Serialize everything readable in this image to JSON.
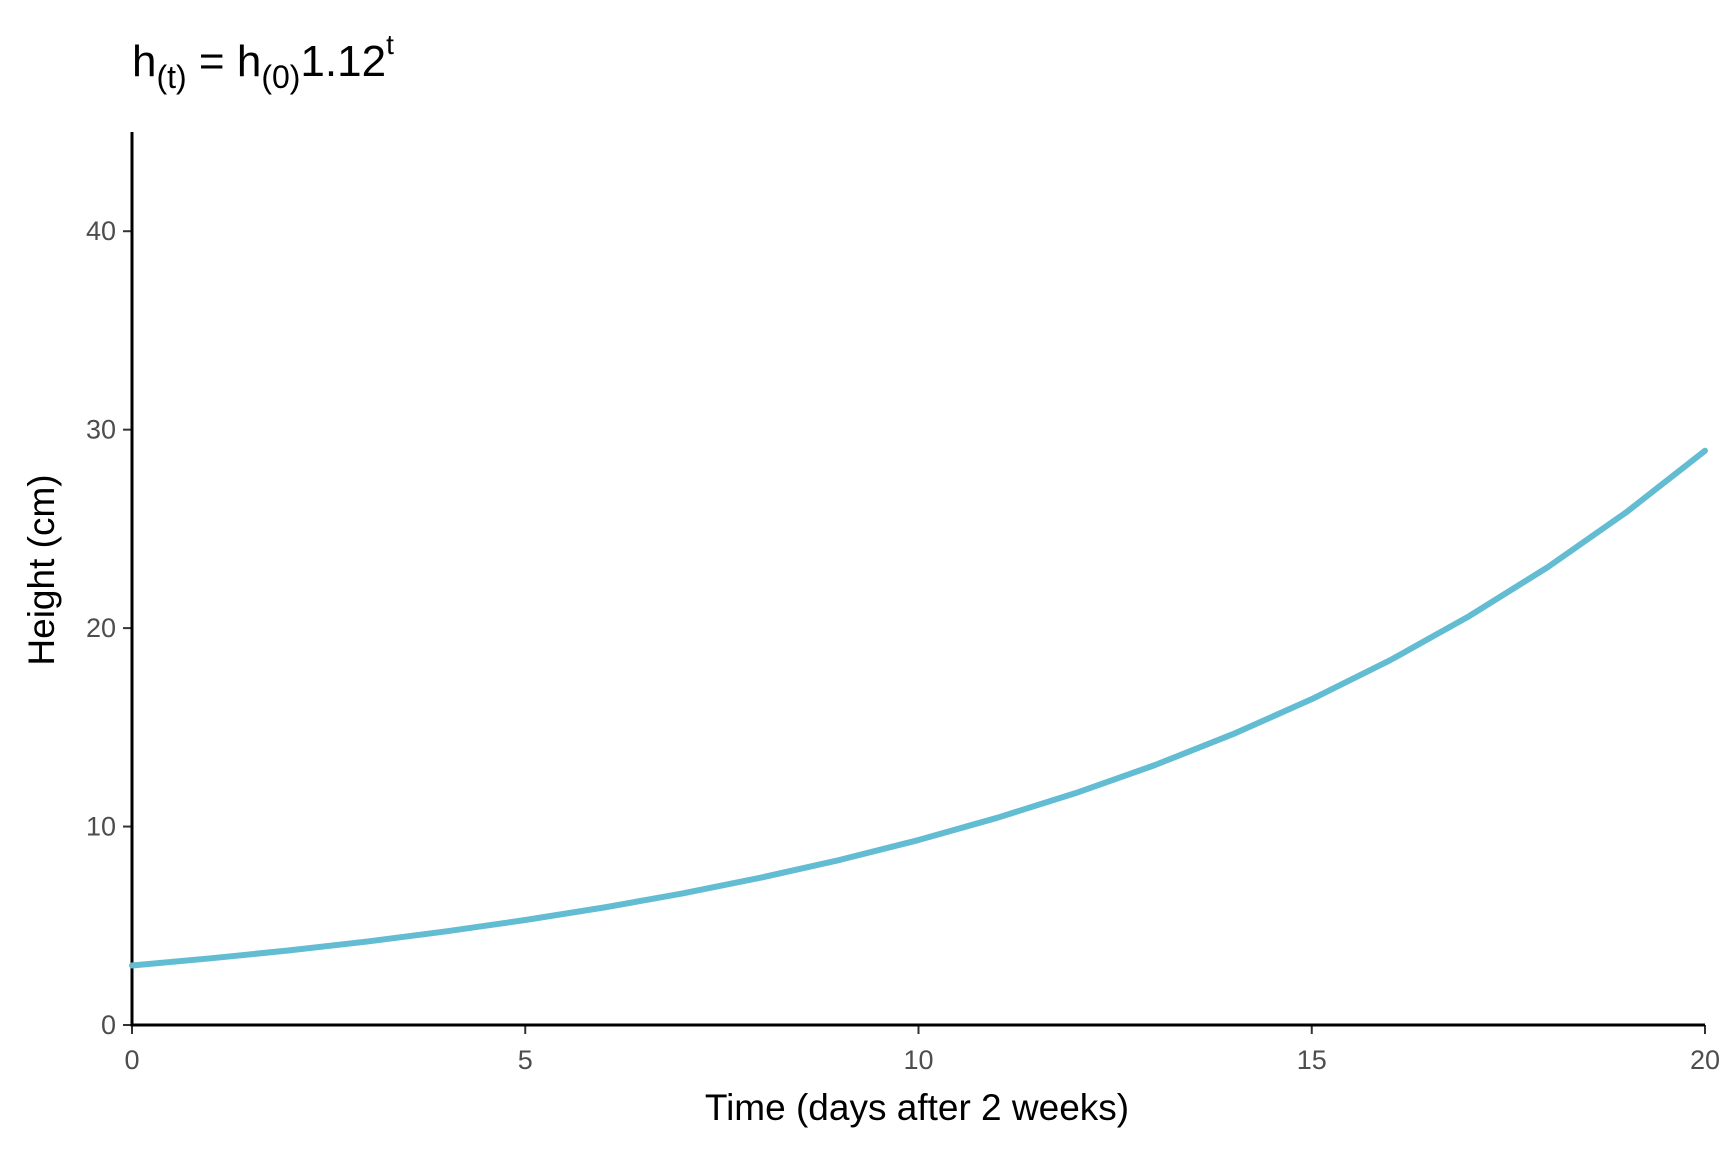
{
  "chart_data": {
    "type": "line",
    "title": {
      "base_left": "h",
      "sub_left": "(t)",
      "equals": " = h",
      "sub_right": "(0)",
      "coefficient": "1.12",
      "exponent": "t"
    },
    "xlabel": "Time (days after 2 weeks)",
    "ylabel": "Height (cm)",
    "xlim": [
      0,
      20
    ],
    "ylim": [
      0,
      45
    ],
    "xticks": [
      0,
      5,
      10,
      15,
      20
    ],
    "yticks": [
      0,
      10,
      20,
      30,
      40
    ],
    "grid": false,
    "line_color": "#62BCD2",
    "series": [
      {
        "x": [
          0,
          1,
          2,
          3,
          4,
          5,
          6,
          7,
          8,
          9,
          10,
          11,
          12,
          13,
          14,
          15,
          16,
          17,
          18,
          19,
          20
        ],
        "values": [
          3.0,
          3.36,
          3.76,
          4.21,
          4.72,
          5.29,
          5.92,
          6.63,
          7.43,
          8.32,
          9.32,
          10.44,
          11.69,
          13.09,
          14.66,
          16.42,
          18.39,
          20.6,
          23.07,
          25.84,
          28.94
        ]
      }
    ]
  }
}
